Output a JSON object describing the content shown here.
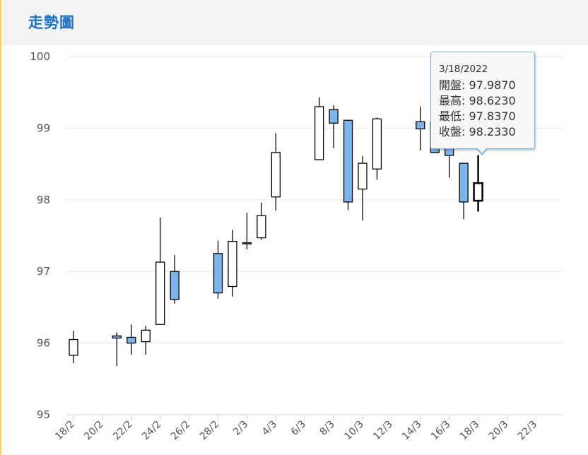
{
  "header": {
    "title": "走勢圖"
  },
  "tooltip": {
    "date": "3/18/2022",
    "rows": [
      {
        "label": "開盤",
        "value": "97.9870"
      },
      {
        "label": "最高",
        "value": "98.6230"
      },
      {
        "label": "最低",
        "value": "97.8370"
      },
      {
        "label": "收盤",
        "value": "98.2330"
      }
    ]
  },
  "colors": {
    "accent": "#1a73c9",
    "down_fill": "#7cb5ec",
    "up_fill": "#ffffff",
    "grid": "#e6e6e6"
  },
  "chart_data": {
    "type": "candlestick",
    "title": "",
    "xlabel": "",
    "ylabel": "",
    "ylim": [
      95,
      100
    ],
    "yticks": [
      95,
      96,
      97,
      98,
      99,
      100
    ],
    "xticks": [
      "18/2",
      "20/2",
      "22/2",
      "24/2",
      "26/2",
      "28/2",
      "2/3",
      "4/3",
      "6/3",
      "8/3",
      "10/3",
      "12/3",
      "14/3",
      "16/3",
      "18/3",
      "20/3",
      "22/3"
    ],
    "grid": true,
    "series": [
      {
        "date": "18/2",
        "open": 95.83,
        "high": 96.17,
        "low": 95.72,
        "close": 96.05
      },
      {
        "date": "21/2",
        "open": 96.1,
        "high": 96.15,
        "low": 95.68,
        "close": 96.07
      },
      {
        "date": "22/2",
        "open": 96.08,
        "high": 96.26,
        "low": 95.84,
        "close": 96.0
      },
      {
        "date": "23/2",
        "open": 96.02,
        "high": 96.24,
        "low": 95.84,
        "close": 96.18
      },
      {
        "date": "24/2",
        "open": 96.26,
        "high": 97.75,
        "low": 96.26,
        "close": 97.13
      },
      {
        "date": "25/2",
        "open": 97.0,
        "high": 97.23,
        "low": 96.55,
        "close": 96.61
      },
      {
        "date": "28/2",
        "open": 97.25,
        "high": 97.43,
        "low": 96.62,
        "close": 96.7
      },
      {
        "date": "1/3",
        "open": 96.79,
        "high": 97.58,
        "low": 96.65,
        "close": 97.42
      },
      {
        "date": "2/3",
        "open": 97.39,
        "high": 97.82,
        "low": 97.31,
        "close": 97.4
      },
      {
        "date": "3/3",
        "open": 97.47,
        "high": 97.96,
        "low": 97.44,
        "close": 97.78
      },
      {
        "date": "4/3",
        "open": 98.04,
        "high": 98.93,
        "low": 97.85,
        "close": 98.66
      },
      {
        "date": "7/3",
        "open": 98.56,
        "high": 99.43,
        "low": 98.56,
        "close": 99.3
      },
      {
        "date": "8/3",
        "open": 99.26,
        "high": 99.32,
        "low": 98.72,
        "close": 99.07
      },
      {
        "date": "9/3",
        "open": 99.11,
        "high": 99.11,
        "low": 97.86,
        "close": 97.97
      },
      {
        "date": "10/3",
        "open": 98.15,
        "high": 98.61,
        "low": 97.71,
        "close": 98.51
      },
      {
        "date": "11/3",
        "open": 98.43,
        "high": 99.15,
        "low": 98.28,
        "close": 99.13
      },
      {
        "date": "14/3",
        "open": 99.09,
        "high": 99.3,
        "low": 98.69,
        "close": 98.99
      },
      {
        "date": "15/3",
        "open": 99.09,
        "high": 99.2,
        "low": 98.66,
        "close": 98.66
      },
      {
        "date": "16/3",
        "open": 98.97,
        "high": 99.02,
        "low": 98.31,
        "close": 98.62
      },
      {
        "date": "17/3",
        "open": 98.51,
        "high": 98.51,
        "low": 97.73,
        "close": 97.97
      },
      {
        "date": "18/3",
        "open": 97.987,
        "high": 98.623,
        "low": 97.837,
        "close": 98.233
      }
    ]
  }
}
